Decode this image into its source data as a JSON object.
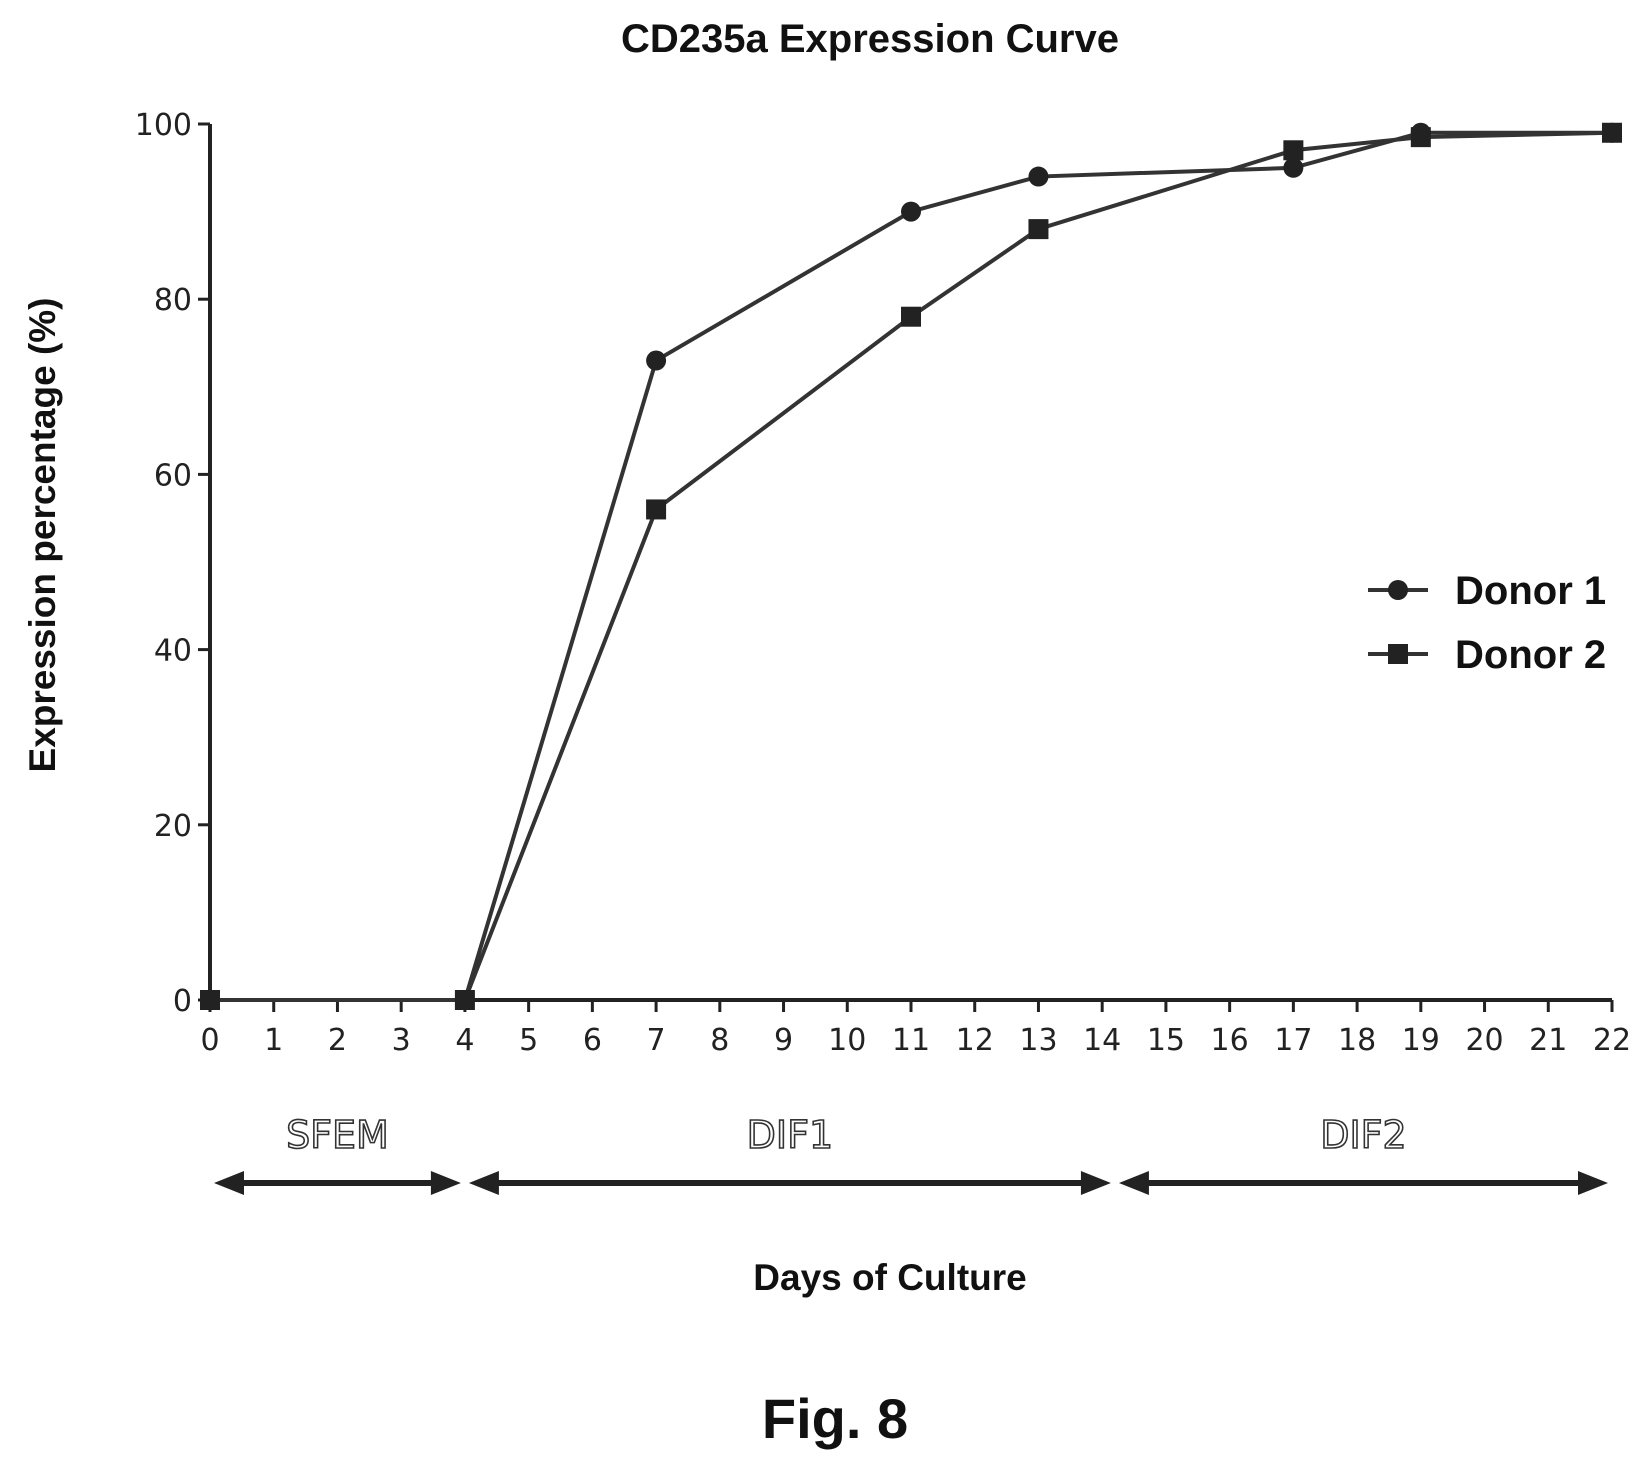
{
  "figure_label": "Fig. 8",
  "chart_data": {
    "type": "line",
    "title": "CD235a Expression Curve",
    "xlabel": "Days of Culture",
    "ylabel": "Expression percentage (%)",
    "xlim": [
      0,
      22
    ],
    "ylim": [
      0,
      100
    ],
    "x_ticks": [
      0,
      1,
      2,
      3,
      4,
      5,
      6,
      7,
      8,
      9,
      10,
      11,
      12,
      13,
      14,
      15,
      16,
      17,
      18,
      19,
      20,
      21,
      22
    ],
    "y_ticks": [
      0,
      20,
      40,
      60,
      80,
      100
    ],
    "grid": false,
    "legend_position": "right",
    "series": [
      {
        "name": "Donor 1",
        "marker": "circle",
        "x": [
          0,
          4,
          7,
          11,
          13,
          17,
          19,
          22
        ],
        "y": [
          0,
          0,
          73,
          90,
          94,
          95,
          99,
          99
        ]
      },
      {
        "name": "Donor 2",
        "marker": "square",
        "x": [
          0,
          4,
          7,
          11,
          13,
          17,
          19,
          22
        ],
        "y": [
          0,
          0,
          56,
          78,
          88,
          97,
          98.5,
          99
        ]
      }
    ],
    "phases": [
      {
        "label": "SFEM",
        "start": 0,
        "end": 4
      },
      {
        "label": "DIF1",
        "start": 4,
        "end": 14.2
      },
      {
        "label": "DIF2",
        "start": 14.2,
        "end": 22
      }
    ],
    "colors": {
      "line": "#333333",
      "marker": "#222222",
      "axis": "#222222"
    }
  }
}
